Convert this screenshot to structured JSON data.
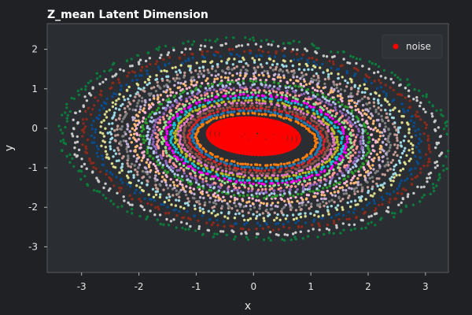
{
  "chart_data": {
    "type": "scatter",
    "title": "Z_mean Latent Dimension",
    "xlabel": "x",
    "ylabel": "y",
    "xlim": [
      -3.6,
      3.4
    ],
    "ylim": [
      -3.65,
      2.65
    ],
    "x_ticks": [
      "-3",
      "-2",
      "-1",
      "0",
      "1",
      "2",
      "3"
    ],
    "x_tick_values": [
      -3,
      -2,
      -1,
      0,
      1,
      2,
      3
    ],
    "y_ticks": [
      "2",
      "1",
      "0",
      "-1",
      "-2",
      "-3"
    ],
    "y_tick_values": [
      2,
      1,
      0,
      -1,
      -2,
      -3
    ],
    "grid": false,
    "legend": {
      "placement": "top-right",
      "entries": [
        {
          "label": "noise",
          "color": "#ff0000"
        }
      ]
    },
    "background": "#2a2d31",
    "figure_background": "#1f2124",
    "noise_cluster": {
      "name": "noise",
      "color": "#ff0000",
      "center": [
        0.0,
        -0.2
      ],
      "semi_axes": [
        0.8,
        0.45
      ],
      "ring_offsets": [
        0.0,
        0.1,
        0.2,
        0.3,
        0.45,
        0.6
      ],
      "points_per_ring": 90
    },
    "rings": [
      {
        "a": 1.05,
        "b": 0.65,
        "color": "#ff7f0e"
      },
      {
        "a": 1.12,
        "b": 0.72,
        "color": "#1f77b4"
      },
      {
        "a": 1.19,
        "b": 0.78,
        "color": "#d62728"
      },
      {
        "a": 1.27,
        "b": 0.85,
        "color": "#8c564b"
      },
      {
        "a": 1.35,
        "b": 0.92,
        "color": "#e377c2"
      },
      {
        "a": 1.42,
        "b": 0.98,
        "color": "#bcbd22"
      },
      {
        "a": 1.5,
        "b": 1.05,
        "color": "#17becf"
      },
      {
        "a": 1.58,
        "b": 1.12,
        "color": "#ff00ff"
      },
      {
        "a": 1.66,
        "b": 1.18,
        "color": "#98df8a"
      },
      {
        "a": 1.74,
        "b": 1.25,
        "color": "#ff9896"
      },
      {
        "a": 1.82,
        "b": 1.32,
        "color": "#9467bd"
      },
      {
        "a": 1.9,
        "b": 1.39,
        "color": "#aec7e8"
      },
      {
        "a": 1.98,
        "b": 1.45,
        "color": "#2ca02c"
      },
      {
        "a": 2.07,
        "b": 1.52,
        "color": "#f7b6d2"
      },
      {
        "a": 2.16,
        "b": 1.6,
        "color": "#ffbb78"
      },
      {
        "a": 2.25,
        "b": 1.67,
        "color": "#c5b0d5"
      },
      {
        "a": 2.35,
        "b": 1.75,
        "color": "#7f7f7f"
      },
      {
        "a": 2.46,
        "b": 1.83,
        "color": "#c49c94"
      },
      {
        "a": 2.57,
        "b": 1.92,
        "color": "#9edae5"
      },
      {
        "a": 2.7,
        "b": 2.02,
        "color": "#dbdb8d"
      },
      {
        "a": 2.85,
        "b": 2.13,
        "color": "#084c8d"
      },
      {
        "a": 3.02,
        "b": 2.25,
        "color": "#8b2a1b"
      },
      {
        "a": 3.2,
        "b": 2.38,
        "color": "#c7c7c7"
      },
      {
        "a": 3.4,
        "b": 2.52,
        "color": "#0b7a3b"
      }
    ]
  }
}
